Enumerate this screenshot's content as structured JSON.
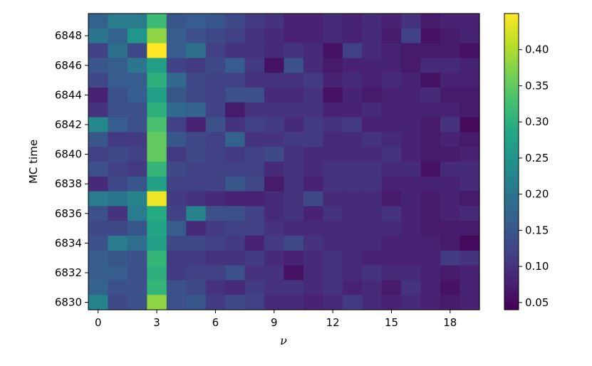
{
  "chart_data": {
    "type": "heatmap",
    "title": "",
    "xlabel": "ν",
    "ylabel": "MC time",
    "colormap": "viridis",
    "x_range": [
      0,
      19
    ],
    "y_range": [
      6830,
      6849
    ],
    "x_ticks": [
      0,
      3,
      6,
      9,
      12,
      15,
      18
    ],
    "x_tick_labels": [
      "0",
      "3",
      "6",
      "9",
      "12",
      "15",
      "18"
    ],
    "y_ticks": [
      6830,
      6832,
      6834,
      6836,
      6838,
      6840,
      6842,
      6844,
      6846,
      6848
    ],
    "y_tick_labels": [
      "6830",
      "6832",
      "6834",
      "6836",
      "6838",
      "6840",
      "6842",
      "6844",
      "6846",
      "6848"
    ],
    "colorbar": {
      "min": 0.04,
      "max": 0.45,
      "ticks": [
        0.05,
        0.1,
        0.15,
        0.2,
        0.25,
        0.3,
        0.35,
        0.4
      ],
      "tick_labels": [
        "0.05",
        "0.10",
        "0.15",
        "0.20",
        "0.25",
        "0.30",
        "0.35",
        "0.40"
      ]
    },
    "rows_top_to_bottom": [
      6849,
      6848,
      6847,
      6846,
      6845,
      6844,
      6843,
      6842,
      6841,
      6840,
      6839,
      6838,
      6837,
      6836,
      6835,
      6834,
      6833,
      6832,
      6831,
      6830
    ],
    "values": [
      [
        0.17,
        0.21,
        0.21,
        0.32,
        0.15,
        0.16,
        0.15,
        0.13,
        0.11,
        0.1,
        0.08,
        0.08,
        0.09,
        0.08,
        0.09,
        0.08,
        0.1,
        0.07,
        0.08,
        0.08
      ],
      [
        0.2,
        0.17,
        0.25,
        0.38,
        0.16,
        0.14,
        0.13,
        0.12,
        0.1,
        0.09,
        0.08,
        0.08,
        0.09,
        0.08,
        0.09,
        0.07,
        0.12,
        0.06,
        0.07,
        0.08
      ],
      [
        0.12,
        0.19,
        0.13,
        0.45,
        0.16,
        0.19,
        0.12,
        0.1,
        0.1,
        0.09,
        0.1,
        0.09,
        0.06,
        0.12,
        0.09,
        0.08,
        0.07,
        0.07,
        0.07,
        0.06
      ],
      [
        0.15,
        0.16,
        0.2,
        0.27,
        0.12,
        0.11,
        0.13,
        0.16,
        0.11,
        0.06,
        0.14,
        0.09,
        0.07,
        0.08,
        0.08,
        0.08,
        0.07,
        0.09,
        0.09,
        0.08
      ],
      [
        0.13,
        0.16,
        0.16,
        0.3,
        0.18,
        0.13,
        0.12,
        0.12,
        0.1,
        0.1,
        0.1,
        0.11,
        0.08,
        0.09,
        0.08,
        0.09,
        0.08,
        0.06,
        0.08,
        0.08
      ],
      [
        0.08,
        0.14,
        0.16,
        0.27,
        0.15,
        0.13,
        0.12,
        0.14,
        0.14,
        0.09,
        0.09,
        0.1,
        0.06,
        0.08,
        0.07,
        0.08,
        0.08,
        0.09,
        0.07,
        0.07
      ],
      [
        0.1,
        0.14,
        0.14,
        0.3,
        0.18,
        0.17,
        0.12,
        0.07,
        0.1,
        0.1,
        0.1,
        0.1,
        0.08,
        0.08,
        0.09,
        0.08,
        0.08,
        0.08,
        0.08,
        0.07
      ],
      [
        0.23,
        0.16,
        0.14,
        0.33,
        0.12,
        0.08,
        0.14,
        0.1,
        0.12,
        0.11,
        0.09,
        0.11,
        0.1,
        0.11,
        0.08,
        0.08,
        0.08,
        0.07,
        0.1,
        0.05
      ],
      [
        0.15,
        0.11,
        0.11,
        0.35,
        0.15,
        0.13,
        0.12,
        0.17,
        0.1,
        0.1,
        0.11,
        0.11,
        0.09,
        0.09,
        0.1,
        0.09,
        0.08,
        0.07,
        0.08,
        0.07
      ],
      [
        0.12,
        0.13,
        0.12,
        0.35,
        0.11,
        0.13,
        0.12,
        0.11,
        0.12,
        0.13,
        0.1,
        0.09,
        0.09,
        0.09,
        0.09,
        0.1,
        0.08,
        0.07,
        0.07,
        0.08
      ],
      [
        0.14,
        0.12,
        0.11,
        0.31,
        0.13,
        0.12,
        0.12,
        0.12,
        0.12,
        0.09,
        0.1,
        0.09,
        0.1,
        0.1,
        0.1,
        0.09,
        0.09,
        0.06,
        0.09,
        0.09
      ],
      [
        0.09,
        0.13,
        0.15,
        0.27,
        0.12,
        0.12,
        0.12,
        0.15,
        0.13,
        0.07,
        0.1,
        0.08,
        0.1,
        0.1,
        0.1,
        0.08,
        0.08,
        0.08,
        0.08,
        0.09
      ],
      [
        0.21,
        0.2,
        0.22,
        0.44,
        0.11,
        0.1,
        0.09,
        0.08,
        0.08,
        0.09,
        0.1,
        0.13,
        0.09,
        0.09,
        0.09,
        0.07,
        0.08,
        0.07,
        0.08,
        0.07
      ],
      [
        0.14,
        0.1,
        0.21,
        0.29,
        0.12,
        0.22,
        0.14,
        0.14,
        0.12,
        0.09,
        0.1,
        0.08,
        0.1,
        0.09,
        0.09,
        0.1,
        0.08,
        0.07,
        0.08,
        0.09
      ],
      [
        0.13,
        0.13,
        0.15,
        0.28,
        0.16,
        0.09,
        0.11,
        0.12,
        0.12,
        0.1,
        0.09,
        0.09,
        0.09,
        0.09,
        0.09,
        0.09,
        0.08,
        0.07,
        0.07,
        0.07
      ],
      [
        0.14,
        0.21,
        0.19,
        0.27,
        0.13,
        0.13,
        0.12,
        0.11,
        0.08,
        0.11,
        0.13,
        0.1,
        0.09,
        0.09,
        0.09,
        0.08,
        0.08,
        0.08,
        0.07,
        0.05
      ],
      [
        0.16,
        0.15,
        0.14,
        0.31,
        0.11,
        0.11,
        0.1,
        0.1,
        0.11,
        0.09,
        0.08,
        0.09,
        0.1,
        0.09,
        0.08,
        0.08,
        0.08,
        0.08,
        0.11,
        0.1
      ],
      [
        0.16,
        0.16,
        0.14,
        0.3,
        0.11,
        0.12,
        0.12,
        0.14,
        0.1,
        0.1,
        0.06,
        0.09,
        0.1,
        0.09,
        0.1,
        0.09,
        0.09,
        0.08,
        0.07,
        0.08
      ],
      [
        0.17,
        0.14,
        0.14,
        0.31,
        0.14,
        0.13,
        0.1,
        0.09,
        0.11,
        0.1,
        0.1,
        0.09,
        0.1,
        0.08,
        0.09,
        0.07,
        0.1,
        0.08,
        0.06,
        0.08
      ],
      [
        0.22,
        0.13,
        0.14,
        0.38,
        0.14,
        0.15,
        0.11,
        0.13,
        0.12,
        0.09,
        0.09,
        0.08,
        0.09,
        0.11,
        0.09,
        0.08,
        0.09,
        0.08,
        0.07,
        0.08
      ]
    ]
  }
}
